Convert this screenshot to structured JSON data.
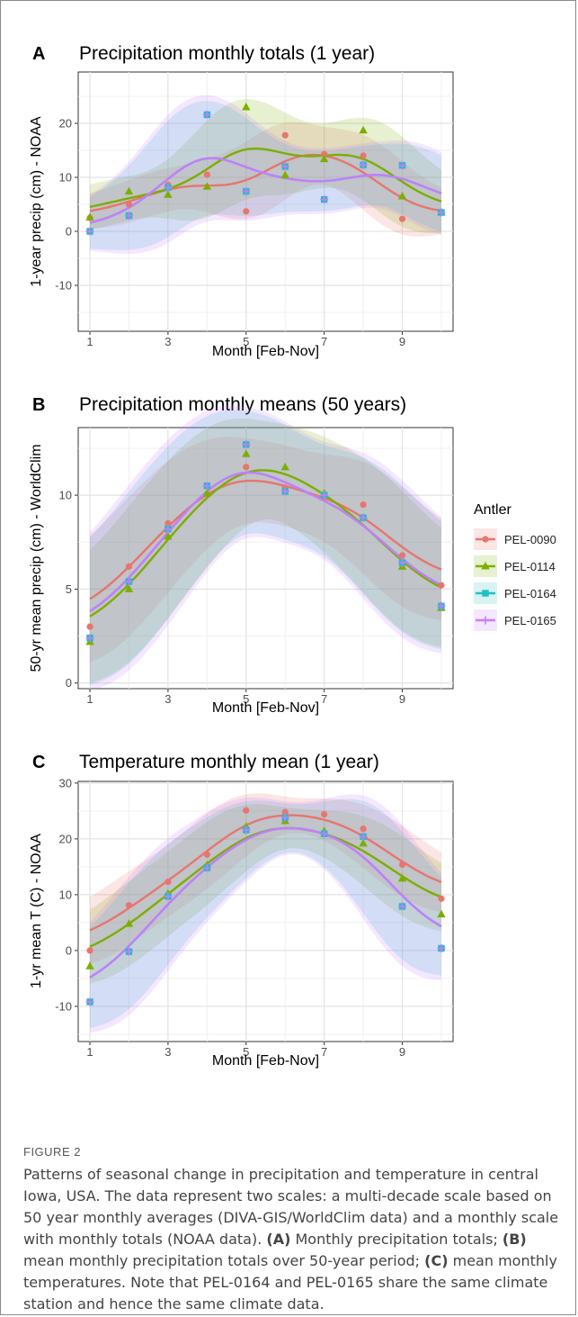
{
  "panels": [
    {
      "letter": "A",
      "title": "Precipitation monthly totals (1 year)",
      "xlabel": "Month [Feb-Nov]",
      "ylabel": "1-year precip (cm) - NOAA"
    },
    {
      "letter": "B",
      "title": "Precipitation monthly means (50 years)",
      "xlabel": "Month [Feb-Nov]",
      "ylabel": "50-yr mean precip (cm) - WorldClim"
    },
    {
      "letter": "C",
      "title": "Temperature monthly mean (1 year)",
      "xlabel": "Month [Feb-Nov]",
      "ylabel": "1-yr mean T (C) - NOAA"
    }
  ],
  "legend": {
    "title": "Antler",
    "items": [
      "PEL-0090",
      "PEL-0114",
      "PEL-0164",
      "PEL-0165"
    ]
  },
  "colors": {
    "PEL-0090": "#e8756f",
    "PEL-0114": "#7cae00",
    "PEL-0164": "#1fbfc4",
    "PEL-0165": "#c77cff",
    "panel_bg": "#ffffff",
    "grid": "#ebebeb"
  },
  "caption": {
    "label": "FIGURE 2",
    "intro": "Patterns of seasonal change in precipitation and temperature in central Iowa, USA. The data represent two scales: a multi-decade scale based on 50 year monthly averages (DIVA-GIS/WorldClim data) and a monthly scale with monthly totals (NOAA data).",
    "a_ref": "(A)",
    "a_text": "Monthly precipitation totals;",
    "b_ref": "(B)",
    "b_text": "mean monthly precipitation totals over 50-year period;",
    "c_ref": "(C)",
    "c_text": "mean monthly temperatures. Note that PEL-0164 and PEL-0165 share the same climate station and hence the same climate data."
  },
  "chart_data": [
    {
      "type": "scatter",
      "title": "Precipitation monthly totals (1 year)",
      "xlabel": "Month [Feb-Nov]",
      "ylabel": "1-year precip (cm) - NOAA",
      "xlim": [
        0.7,
        10.3
      ],
      "ylim": [
        -18.5,
        29.5
      ],
      "xticks": [
        1,
        3,
        5,
        7,
        9
      ],
      "yticks": [
        -10,
        0,
        10,
        20
      ],
      "grid": true,
      "legend": "right",
      "smoother": "loess with confidence band",
      "x": [
        1,
        2,
        3,
        4,
        5,
        6,
        7,
        8,
        9,
        10
      ],
      "series": [
        {
          "name": "PEL-0090",
          "values": [
            2.5,
            5.0,
            8.6,
            10.5,
            3.7,
            17.8,
            14.3,
            14.0,
            2.3,
            3.5
          ]
        },
        {
          "name": "PEL-0114",
          "values": [
            2.6,
            7.4,
            6.8,
            8.3,
            23.0,
            10.4,
            13.4,
            18.7,
            6.5,
            3.5
          ]
        },
        {
          "name": "PEL-0164",
          "values": [
            0.0,
            2.9,
            8.1,
            21.6,
            7.4,
            12.0,
            5.9,
            12.3,
            12.2,
            3.5
          ]
        },
        {
          "name": "PEL-0165",
          "values": [
            0.0,
            2.9,
            8.1,
            21.6,
            7.4,
            12.0,
            5.9,
            12.3,
            12.2,
            3.5
          ]
        }
      ]
    },
    {
      "type": "scatter",
      "title": "Precipitation monthly means (50 years)",
      "xlabel": "Month [Feb-Nov]",
      "ylabel": "50-yr mean precip (cm) - WorldClim",
      "xlim": [
        0.7,
        10.3
      ],
      "ylim": [
        -0.3,
        13.6
      ],
      "xticks": [
        1,
        3,
        5,
        7,
        9
      ],
      "yticks": [
        0,
        5,
        10
      ],
      "grid": true,
      "legend": "right",
      "smoother": "loess with confidence band",
      "x": [
        1,
        2,
        3,
        4,
        5,
        6,
        7,
        8,
        9,
        10
      ],
      "series": [
        {
          "name": "PEL-0090",
          "values": [
            3.0,
            6.2,
            8.5,
            10.5,
            11.5,
            10.4,
            9.9,
            9.5,
            6.8,
            5.2
          ]
        },
        {
          "name": "PEL-0114",
          "values": [
            2.2,
            5.0,
            7.8,
            10.1,
            12.2,
            11.5,
            10.1,
            8.8,
            6.2,
            4.0
          ]
        },
        {
          "name": "PEL-0164",
          "values": [
            2.4,
            5.4,
            8.2,
            10.5,
            12.7,
            10.2,
            10.0,
            8.8,
            6.4,
            4.1
          ]
        },
        {
          "name": "PEL-0165",
          "values": [
            2.4,
            5.4,
            8.2,
            10.5,
            12.7,
            10.2,
            10.0,
            8.8,
            6.4,
            4.1
          ]
        }
      ]
    },
    {
      "type": "scatter",
      "title": "Temperature monthly mean (1 year)",
      "xlabel": "Month [Feb-Nov]",
      "ylabel": "1-yr mean T (C) - NOAA",
      "xlim": [
        0.7,
        10.3
      ],
      "ylim": [
        -16.3,
        30.3
      ],
      "xticks": [
        1,
        3,
        5,
        7,
        9
      ],
      "yticks": [
        -10,
        0,
        10,
        20,
        30
      ],
      "grid": true,
      "legend": "right",
      "smoother": "loess with confidence band",
      "x": [
        1,
        2,
        3,
        4,
        5,
        6,
        7,
        8,
        9,
        10
      ],
      "series": [
        {
          "name": "PEL-0090",
          "values": [
            0.0,
            8.1,
            12.3,
            17.2,
            25.1,
            24.8,
            24.4,
            21.8,
            15.4,
            9.3
          ]
        },
        {
          "name": "PEL-0114",
          "values": [
            -2.8,
            4.8,
            10.2,
            15.3,
            22.2,
            23.2,
            21.4,
            19.2,
            12.9,
            6.5
          ]
        },
        {
          "name": "PEL-0164",
          "values": [
            -9.2,
            -0.2,
            9.7,
            14.8,
            21.6,
            23.8,
            20.9,
            20.4,
            7.9,
            0.4
          ]
        },
        {
          "name": "PEL-0165",
          "values": [
            -9.2,
            -0.2,
            9.7,
            14.8,
            21.6,
            23.8,
            20.9,
            20.4,
            7.9,
            0.4
          ]
        }
      ]
    }
  ]
}
